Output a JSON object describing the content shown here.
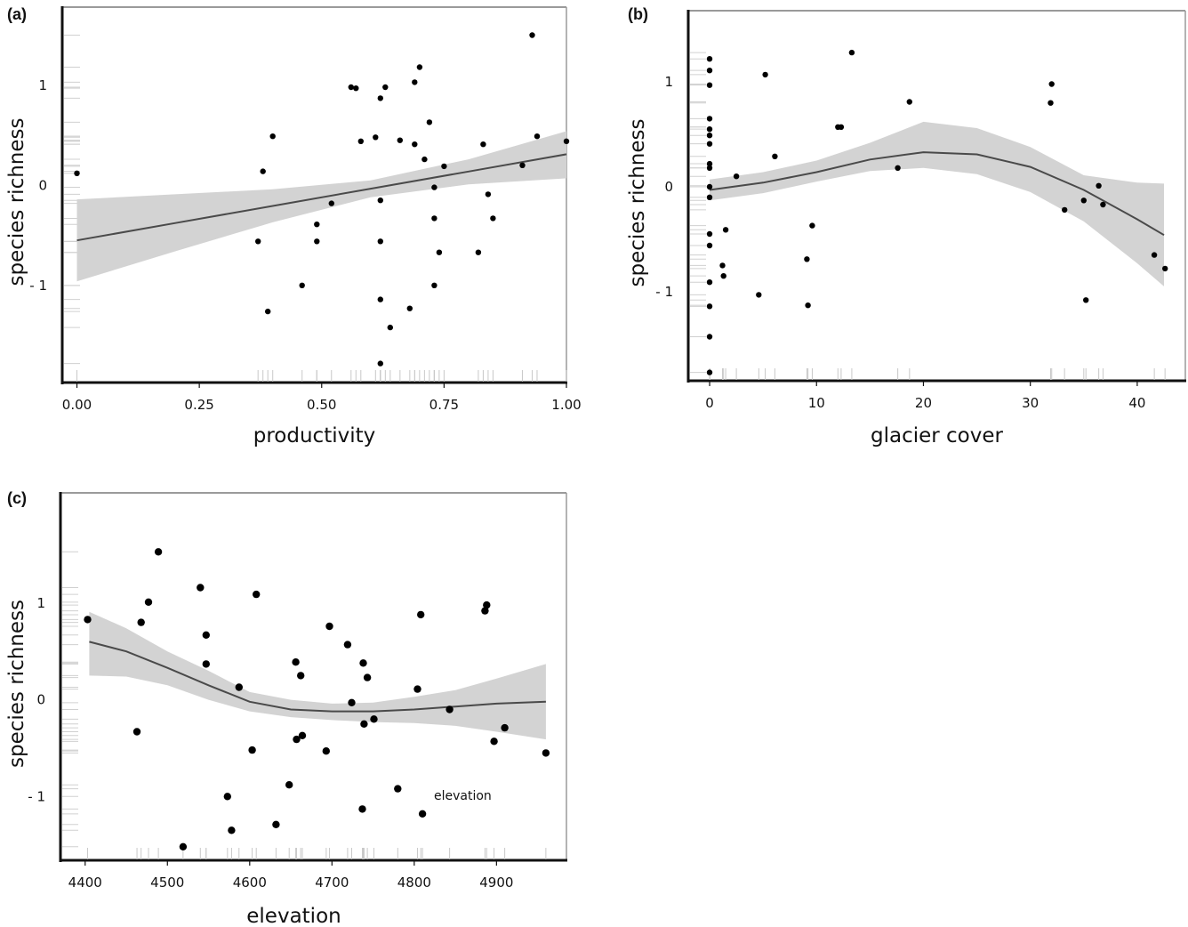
{
  "chart_data": [
    {
      "panel": "(a)",
      "type": "scatter",
      "xlabel": "productivity",
      "ylabel": "species richness",
      "xlim": [
        -0.03,
        1.0
      ],
      "ylim": [
        -1.97,
        1.78
      ],
      "xticks": [
        0.0,
        0.25,
        0.5,
        0.75,
        1.0
      ],
      "xtick_labels": [
        "0.00",
        "0.25",
        "0.50",
        "0.75",
        "1.00"
      ],
      "yticks": [
        1,
        0,
        -1
      ],
      "ytick_labels": [
        "1",
        "0",
        "- 1"
      ],
      "border_color": "#9a9a9a",
      "fit": {
        "type": "linear",
        "x": [
          0.0,
          0.2,
          0.4,
          0.6,
          0.8,
          1.0
        ],
        "y": [
          -0.55,
          -0.378,
          -0.206,
          -0.034,
          0.138,
          0.31
        ],
        "ci_lower": [
          -0.96,
          -0.66,
          -0.37,
          -0.12,
          0.01,
          0.07
        ],
        "ci_upper": [
          -0.14,
          -0.09,
          -0.04,
          0.05,
          0.26,
          0.54
        ],
        "line_color": "#4a4a4a",
        "band_color": "#d3d3d3"
      },
      "points": {
        "x": [
          0.0,
          0.38,
          0.37,
          0.4,
          0.39,
          0.46,
          0.49,
          0.49,
          0.52,
          0.56,
          0.57,
          0.58,
          0.61,
          0.62,
          0.62,
          0.62,
          0.62,
          0.63,
          0.64,
          0.62,
          0.66,
          0.68,
          0.69,
          0.69,
          0.7,
          0.71,
          0.72,
          0.73,
          0.73,
          0.73,
          0.74,
          0.75,
          0.82,
          0.83,
          0.84,
          0.85,
          0.91,
          0.93,
          0.94,
          1.0
        ],
        "y": [
          0.12,
          0.14,
          -0.56,
          0.49,
          -1.26,
          -1.0,
          -0.39,
          -0.56,
          -0.18,
          0.98,
          0.97,
          0.44,
          0.48,
          0.87,
          -0.15,
          -0.56,
          -1.14,
          0.98,
          -1.42,
          -1.78,
          0.45,
          -1.23,
          0.41,
          1.03,
          1.18,
          0.26,
          0.63,
          -0.02,
          -0.33,
          -1.0,
          -0.67,
          0.19,
          -0.67,
          0.41,
          -0.09,
          -0.33,
          0.2,
          1.5,
          0.49,
          0.44
        ]
      }
    },
    {
      "panel": "(b)",
      "type": "scatter",
      "xlabel": "glacier cover",
      "ylabel": "species richness",
      "xlim": [
        -2,
        44.5
      ],
      "ylim": [
        -1.85,
        1.68
      ],
      "xticks": [
        0,
        10,
        20,
        30,
        40
      ],
      "xtick_labels": [
        "0",
        "10",
        "20",
        "30",
        "40"
      ],
      "yticks": [
        1,
        0,
        -1
      ],
      "ytick_labels": [
        "1",
        "0",
        "- 1"
      ],
      "border_color": "#9a9a9a",
      "fit": {
        "type": "smooth",
        "x": [
          0,
          5,
          10,
          15,
          20,
          25,
          30,
          35,
          40,
          42.5
        ],
        "y": [
          -0.03,
          0.04,
          0.14,
          0.26,
          0.33,
          0.31,
          0.19,
          -0.03,
          -0.31,
          -0.46
        ],
        "ci_lower": [
          -0.13,
          -0.06,
          0.05,
          0.15,
          0.18,
          0.12,
          -0.05,
          -0.33,
          -0.73,
          -0.95
        ],
        "ci_upper": [
          0.07,
          0.14,
          0.25,
          0.42,
          0.62,
          0.56,
          0.38,
          0.11,
          0.04,
          0.03
        ],
        "line_color": "#4a4a4a",
        "band_color": "#d3d3d3"
      },
      "points": {
        "x": [
          0,
          0,
          0,
          0,
          0,
          0,
          0,
          0,
          0,
          0,
          0,
          0,
          0,
          0,
          0,
          0,
          0,
          1.2,
          1.3,
          1.5,
          2.5,
          4.6,
          5.2,
          6.1,
          9.1,
          9.2,
          9.6,
          12.0,
          12.3,
          13.3,
          17.6,
          18.7,
          31.9,
          32.0,
          33.2,
          35.0,
          35.2,
          36.4,
          36.8,
          41.6,
          42.6
        ],
        "y": [
          1.22,
          1.11,
          0.97,
          0.65,
          0.55,
          0.49,
          0.41,
          0.22,
          0.18,
          -0.1,
          -0.45,
          -0.56,
          -0.91,
          -1.14,
          -1.43,
          -1.77,
          0.0,
          -0.75,
          -0.85,
          -0.41,
          0.1,
          -1.03,
          1.07,
          0.29,
          -0.69,
          -1.13,
          -0.37,
          0.57,
          0.57,
          1.28,
          0.18,
          0.81,
          0.8,
          0.98,
          -0.22,
          -0.13,
          -1.08,
          0.01,
          -0.17,
          -0.65,
          -0.78
        ]
      }
    },
    {
      "panel": "(c)",
      "type": "scatter",
      "xlabel": "elevation",
      "ylabel": "species richness",
      "xlim": [
        4370,
        4985
      ],
      "ylim": [
        -1.66,
        2.14
      ],
      "xticks": [
        4400,
        4500,
        4600,
        4700,
        4800,
        4900
      ],
      "xtick_labels": [
        "4400",
        "4500",
        "4600",
        "4700",
        "4800",
        "4900"
      ],
      "yticks": [
        1,
        0,
        -1
      ],
      "ytick_labels": [
        "1",
        "0",
        "- 1"
      ],
      "annotation": "elevation",
      "border_color": "#9a9a9a",
      "fit": {
        "type": "smooth",
        "x": [
          4405,
          4450,
          4500,
          4550,
          4600,
          4650,
          4700,
          4750,
          4800,
          4850,
          4900,
          4960
        ],
        "y": [
          0.6,
          0.5,
          0.33,
          0.15,
          -0.02,
          -0.1,
          -0.12,
          -0.12,
          -0.1,
          -0.07,
          -0.04,
          -0.02
        ],
        "ci_lower": [
          0.25,
          0.24,
          0.15,
          -0.0,
          -0.12,
          -0.18,
          -0.21,
          -0.23,
          -0.24,
          -0.27,
          -0.33,
          -0.41
        ],
        "ci_upper": [
          0.91,
          0.74,
          0.5,
          0.3,
          0.08,
          0.0,
          -0.04,
          -0.03,
          0.03,
          0.1,
          0.22,
          0.37
        ]
      },
      "points": {
        "x": [
          4403,
          4463,
          4468,
          4477,
          4489,
          4519,
          4540,
          4547,
          4547,
          4573,
          4578,
          4587,
          4603,
          4608,
          4632,
          4648,
          4656,
          4657,
          4662,
          4664,
          4693,
          4697,
          4719,
          4724,
          4737,
          4738,
          4739,
          4743,
          4751,
          4780,
          4804,
          4808,
          4810,
          4843,
          4886,
          4888,
          4897,
          4910,
          4960
        ],
        "y": [
          0.83,
          -0.33,
          0.8,
          1.01,
          1.53,
          -1.52,
          1.16,
          0.37,
          0.67,
          -1.0,
          -1.35,
          0.13,
          -0.52,
          1.09,
          -1.29,
          -0.88,
          0.39,
          -0.41,
          0.25,
          -0.37,
          -0.53,
          0.76,
          0.57,
          -0.03,
          -1.13,
          0.38,
          -0.25,
          0.23,
          -0.2,
          -0.92,
          0.11,
          0.88,
          -1.18,
          -0.1,
          0.92,
          0.98,
          -0.43,
          -0.29,
          -0.55
        ]
      }
    }
  ]
}
